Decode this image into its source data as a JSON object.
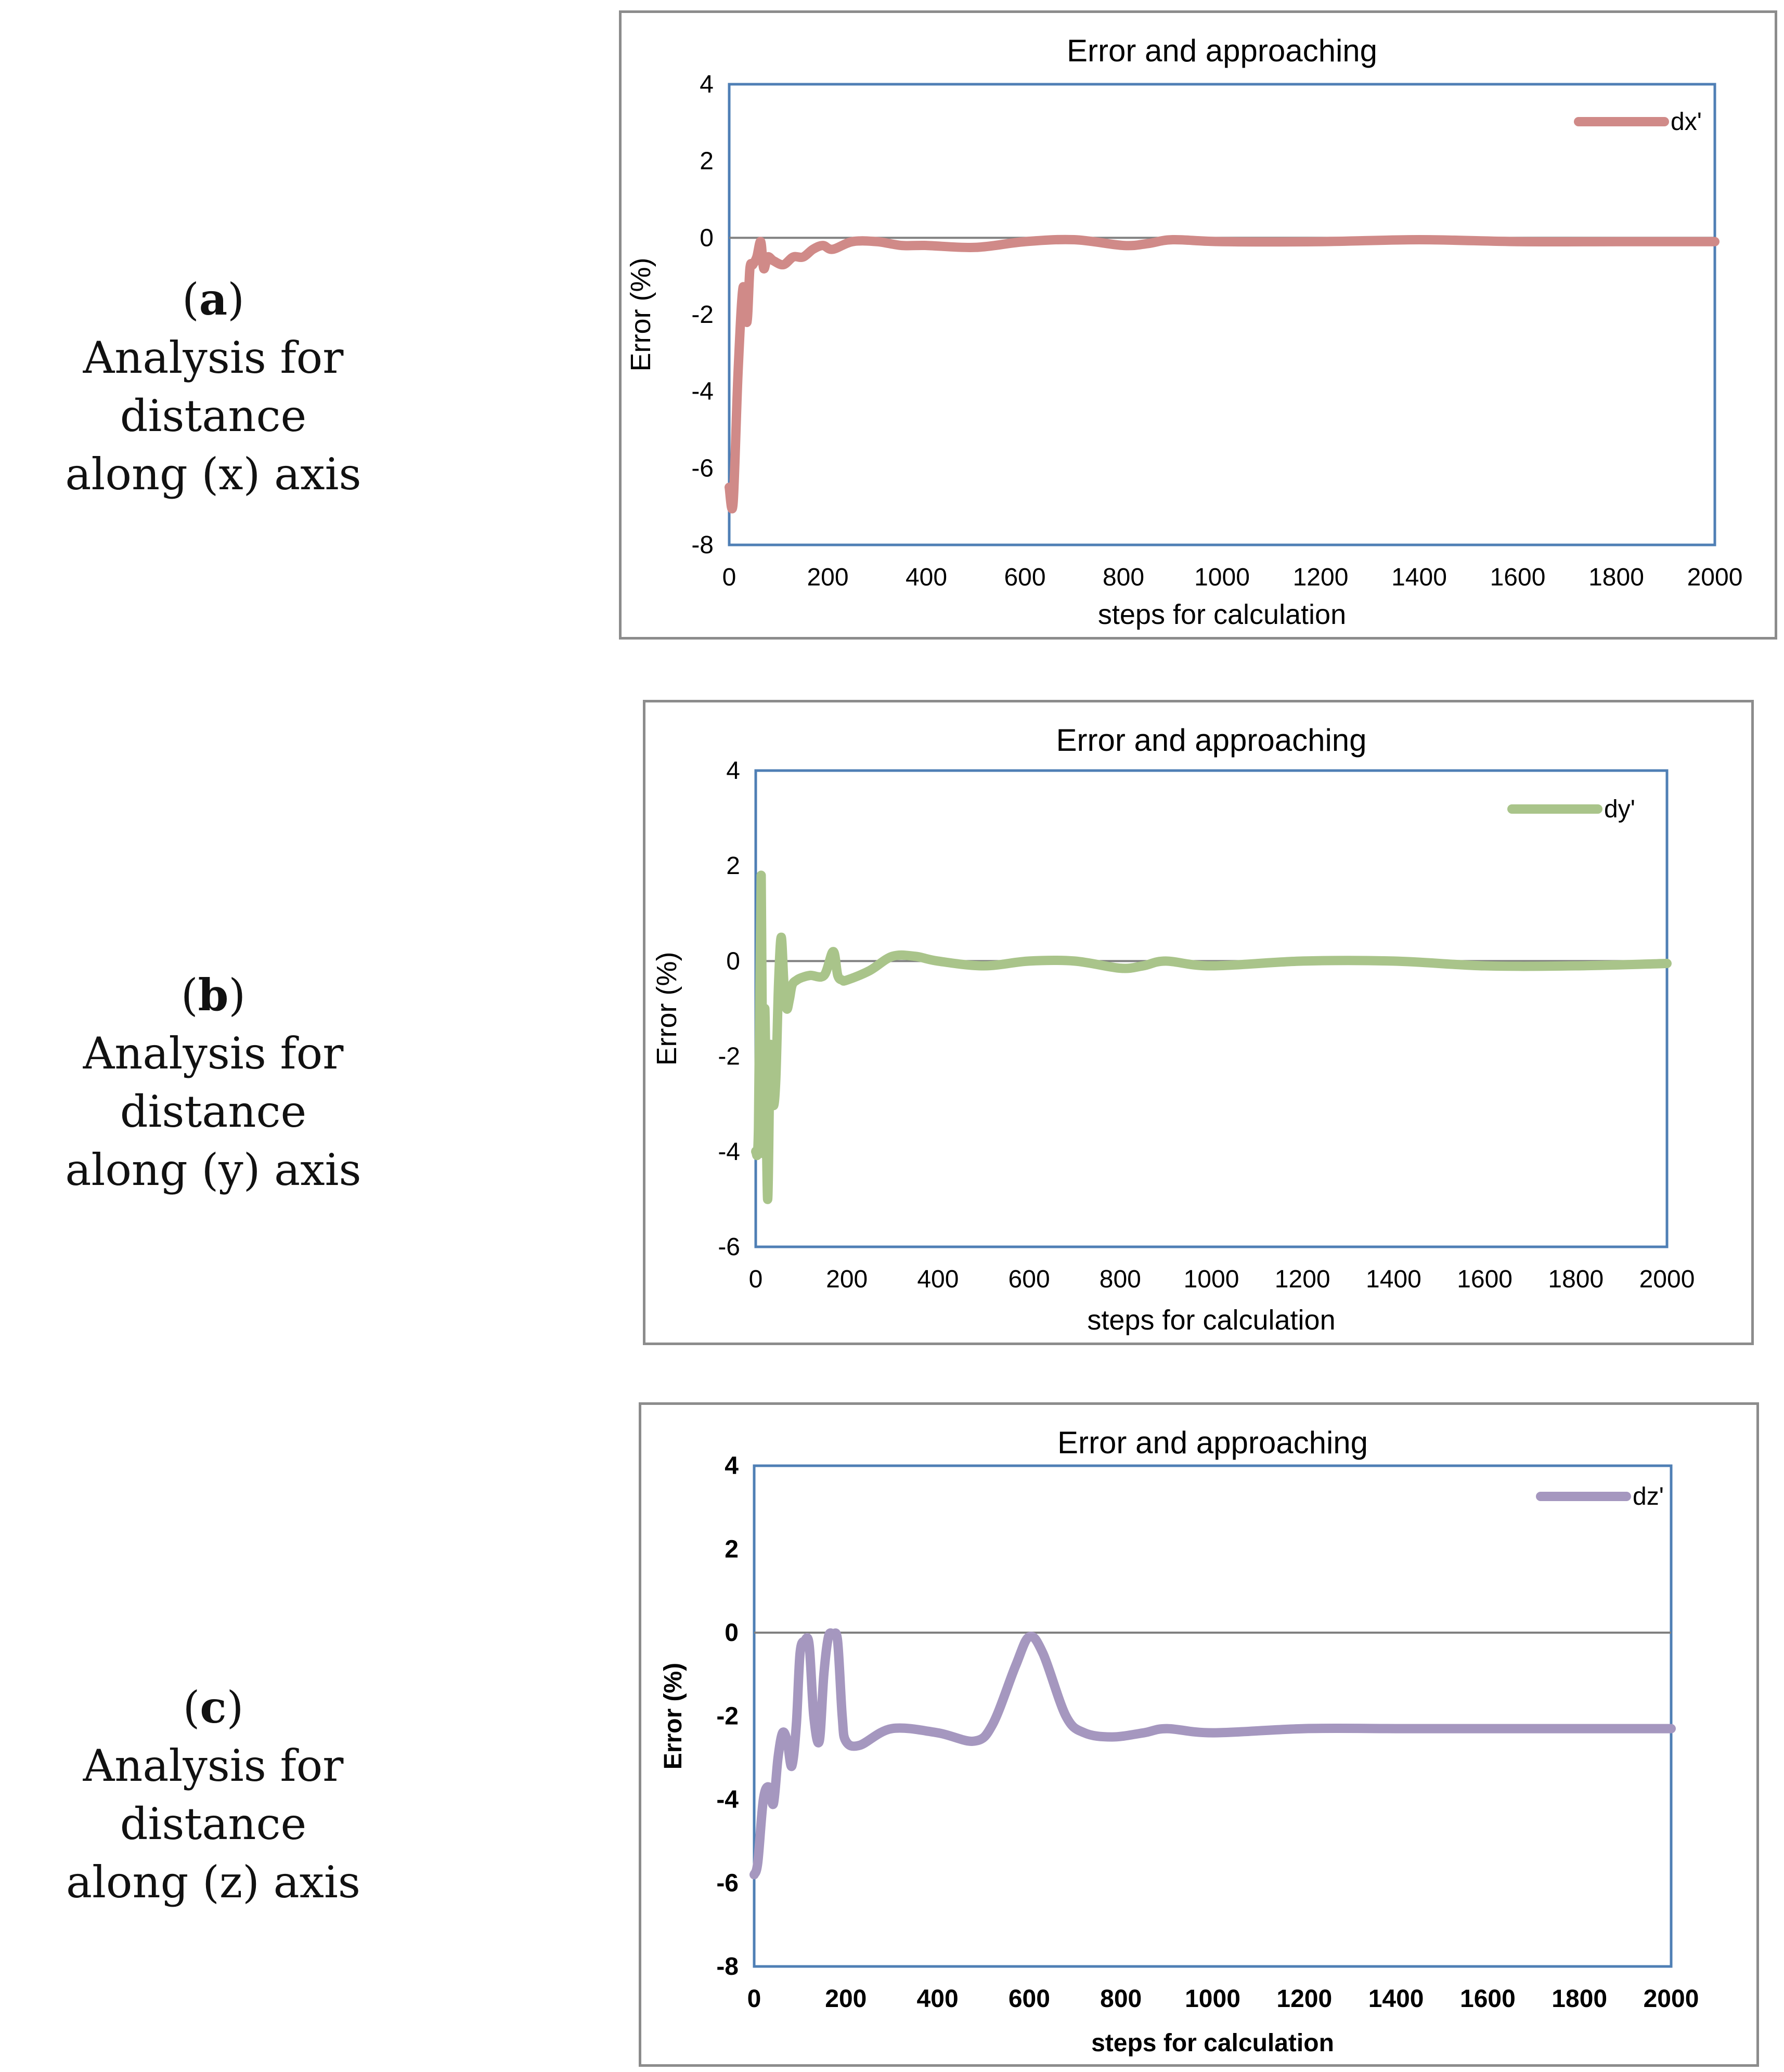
{
  "captions": [
    {
      "letter": "a",
      "text_line1": "Analysis for distance",
      "text_line2": "along (x) axis"
    },
    {
      "letter": "b",
      "text_line1": "Analysis for distance",
      "text_line2": "along (y) axis"
    },
    {
      "letter": "c",
      "text_line1": "Analysis for distance",
      "text_line2": "along (z) axis"
    }
  ],
  "chart_data": [
    {
      "type": "line",
      "title": "Error and approaching",
      "xlabel": "steps for calculation",
      "ylabel": "Error (%)",
      "xlim": [
        0,
        2000
      ],
      "ylim": [
        -8,
        4
      ],
      "xticks": [
        "0",
        "200",
        "400",
        "600",
        "800",
        "1000",
        "1200",
        "1400",
        "1600",
        "1800",
        "2000"
      ],
      "yticks": [
        "4",
        "2",
        "0",
        "-2",
        "-4",
        "-6",
        "-8"
      ],
      "series": [
        {
          "name": "dx'",
          "color": "#d08a88",
          "x": [
            0,
            8,
            18,
            28,
            36,
            42,
            48,
            56,
            64,
            70,
            78,
            90,
            110,
            130,
            150,
            170,
            190,
            210,
            250,
            300,
            350,
            400,
            500,
            600,
            700,
            800,
            850,
            900,
            1000,
            1200,
            1400,
            1600,
            1800,
            2000
          ],
          "y": [
            -6.5,
            -6.9,
            -3.5,
            -1.3,
            -2.2,
            -0.8,
            -0.7,
            -0.5,
            -0.1,
            -0.8,
            -0.5,
            -0.6,
            -0.7,
            -0.5,
            -0.5,
            -0.3,
            -0.2,
            -0.3,
            -0.1,
            -0.1,
            -0.2,
            -0.2,
            -0.25,
            -0.1,
            -0.05,
            -0.2,
            -0.15,
            -0.05,
            -0.1,
            -0.1,
            -0.05,
            -0.1,
            -0.1,
            -0.1
          ]
        }
      ]
    },
    {
      "type": "line",
      "title": "Error and approaching",
      "xlabel": "steps for calculation",
      "ylabel": "Error (%)",
      "xlim": [
        0,
        2000
      ],
      "ylim": [
        -6,
        4
      ],
      "xticks": [
        "0",
        "200",
        "400",
        "600",
        "800",
        "1000",
        "1200",
        "1400",
        "1600",
        "1800",
        "2000"
      ],
      "yticks": [
        "4",
        "2",
        "0",
        "-2",
        "-4",
        "-6"
      ],
      "series": [
        {
          "name": "dy'",
          "color": "#a9c48a",
          "x": [
            0,
            6,
            12,
            16,
            20,
            26,
            32,
            38,
            44,
            50,
            56,
            62,
            68,
            74,
            80,
            90,
            100,
            120,
            150,
            170,
            180,
            190,
            200,
            250,
            300,
            350,
            400,
            500,
            600,
            700,
            800,
            850,
            900,
            1000,
            1200,
            1400,
            1600,
            1800,
            2000
          ],
          "y": [
            -4.0,
            -3.5,
            1.8,
            -4.0,
            -1.0,
            -5.0,
            -1.8,
            -3.0,
            -2.5,
            -0.5,
            0.5,
            -0.5,
            -1.0,
            -0.8,
            -0.5,
            -0.4,
            -0.35,
            -0.3,
            -0.3,
            0.2,
            -0.3,
            -0.4,
            -0.4,
            -0.2,
            0.1,
            0.1,
            0.0,
            -0.1,
            0.0,
            0.0,
            -0.15,
            -0.1,
            0.0,
            -0.1,
            0.0,
            0.0,
            -0.1,
            -0.1,
            -0.05
          ]
        }
      ]
    },
    {
      "type": "line",
      "title": "Error and approaching",
      "xlabel": "steps for calculation",
      "ylabel": "Error (%)",
      "xlim": [
        0,
        2000
      ],
      "ylim": [
        -8,
        4
      ],
      "xticks": [
        "0",
        "200",
        "400",
        "600",
        "800",
        "1000",
        "1200",
        "1400",
        "1600",
        "1800",
        "2000"
      ],
      "yticks": [
        "4",
        "2",
        "0",
        "-2",
        "-4",
        "-6",
        "-8"
      ],
      "series": [
        {
          "name": "dz'",
          "color": "#a597bf",
          "x": [
            0,
            8,
            20,
            32,
            42,
            52,
            62,
            72,
            82,
            92,
            100,
            110,
            120,
            130,
            142,
            152,
            162,
            172,
            182,
            192,
            200,
            230,
            300,
            400,
            480,
            520,
            570,
            600,
            630,
            680,
            720,
            780,
            850,
            900,
            1000,
            1200,
            1400,
            1600,
            1800,
            2000
          ],
          "y": [
            -5.8,
            -5.5,
            -4.0,
            -3.7,
            -4.1,
            -3.0,
            -2.4,
            -2.6,
            -3.2,
            -2.2,
            -0.5,
            -0.2,
            -0.3,
            -2.0,
            -2.6,
            -1.0,
            -0.1,
            -0.05,
            -0.2,
            -2.0,
            -2.6,
            -2.7,
            -2.3,
            -2.4,
            -2.6,
            -2.2,
            -0.8,
            -0.1,
            -0.5,
            -2.0,
            -2.4,
            -2.5,
            -2.4,
            -2.3,
            -2.4,
            -2.3,
            -2.3,
            -2.3,
            -2.3,
            -2.3
          ]
        }
      ]
    }
  ]
}
